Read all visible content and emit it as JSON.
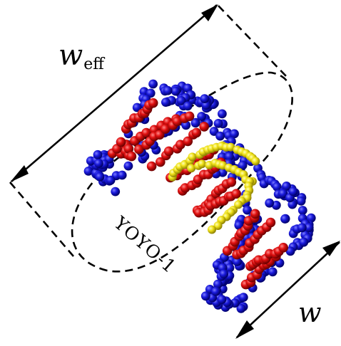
{
  "labels": {
    "effective_width": {
      "main": "w",
      "subscript": "eff"
    },
    "width": "w",
    "molecule": "YOYO-1"
  },
  "colors": {
    "backbone": "#1a1adc",
    "base": "#e01010",
    "intercalator": "#f0e21a",
    "lines": "#000000"
  }
}
